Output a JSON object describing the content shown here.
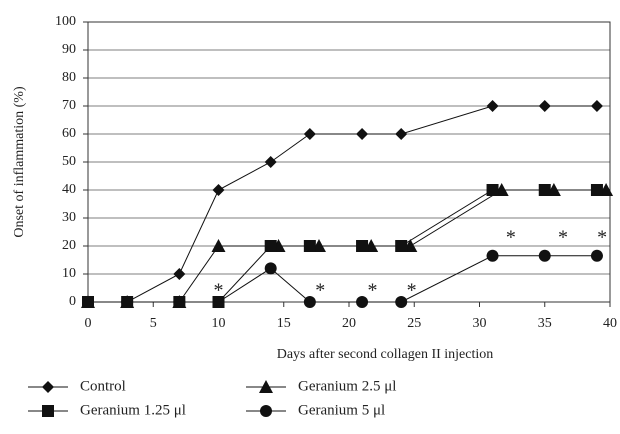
{
  "chart_data": {
    "type": "line",
    "xlabel": "Days after second collagen II injection",
    "ylabel": "Onset of inflammation (%)",
    "xlim": [
      0,
      40
    ],
    "xticks": [
      0,
      5,
      10,
      15,
      20,
      25,
      30,
      35,
      40
    ],
    "ylim": [
      0,
      100
    ],
    "yticks": [
      0,
      10,
      20,
      30,
      40,
      50,
      60,
      70,
      80,
      90,
      100
    ],
    "grid": true,
    "series": [
      {
        "name": "Control",
        "color": "#111111",
        "marker": "diamond",
        "x": [
          0,
          3,
          7,
          10,
          14,
          17,
          21,
          24,
          31,
          35,
          39
        ],
        "values": [
          0,
          0,
          10,
          40,
          50,
          60,
          60,
          60,
          70,
          70,
          70
        ]
      },
      {
        "name": "Geranium 2.5 μl",
        "color": "#111111",
        "marker": "triangle",
        "x": [
          0,
          3,
          7,
          10,
          14.6,
          17.7,
          21.7,
          24.7,
          31.7,
          35.7,
          39.7
        ],
        "values": [
          0,
          0,
          0,
          20,
          20,
          20,
          20,
          20,
          40,
          40,
          40
        ]
      },
      {
        "name": "Geranium 1.25 μl",
        "color": "#111111",
        "marker": "square",
        "x": [
          0,
          3,
          7,
          10,
          14,
          17,
          21,
          24,
          31,
          35,
          39
        ],
        "values": [
          0,
          0,
          0,
          0,
          20,
          20,
          20,
          20,
          40,
          40,
          40
        ]
      },
      {
        "name": "Geranium 5 μl",
        "color": "#111111",
        "marker": "circle",
        "x": [
          0,
          3,
          7,
          10,
          14,
          17,
          21,
          24,
          31,
          35,
          39
        ],
        "values": [
          0,
          0,
          0,
          0,
          12,
          0,
          0,
          0,
          16.5,
          16.5,
          16.5
        ]
      }
    ],
    "annotations": [
      {
        "text": "*",
        "x": 10,
        "y": 5
      },
      {
        "text": "*",
        "x": 17.8,
        "y": 5
      },
      {
        "text": "*",
        "x": 21.8,
        "y": 5
      },
      {
        "text": "*",
        "x": 24.8,
        "y": 5
      },
      {
        "text": "*",
        "x": 32.4,
        "y": 24
      },
      {
        "text": "*",
        "x": 36.4,
        "y": 24
      },
      {
        "text": "*",
        "x": 39.4,
        "y": 24
      }
    ]
  }
}
